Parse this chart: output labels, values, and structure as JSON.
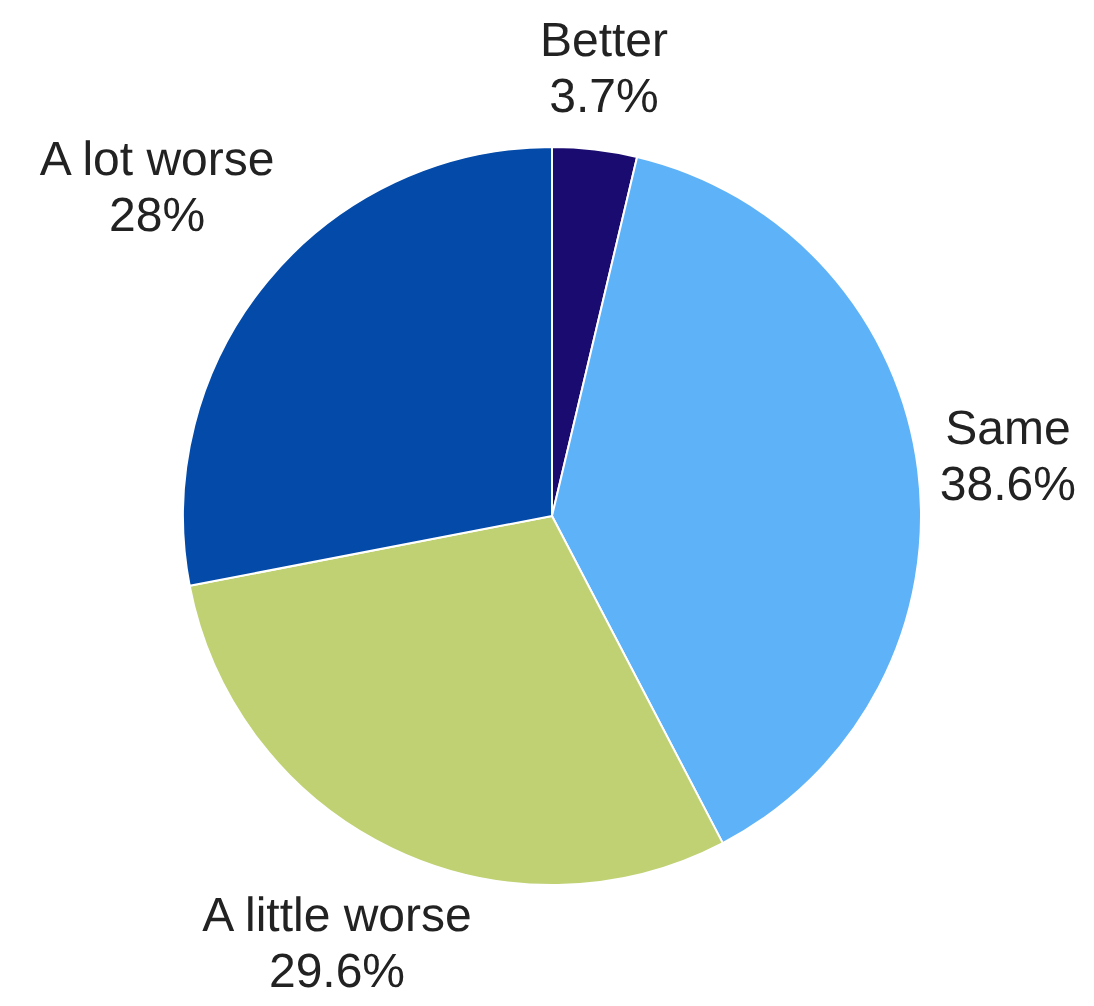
{
  "chart_data": {
    "type": "pie",
    "categories": [
      "Better",
      "Same",
      "A little worse",
      "A lot worse"
    ],
    "values": [
      3.7,
      38.6,
      29.6,
      28
    ],
    "colors": [
      "#1a0b70",
      "#5eb2f8",
      "#bfd173",
      "#034aa9"
    ],
    "value_labels": [
      "3.7%",
      "38.6%",
      "29.6%",
      "28%"
    ]
  }
}
